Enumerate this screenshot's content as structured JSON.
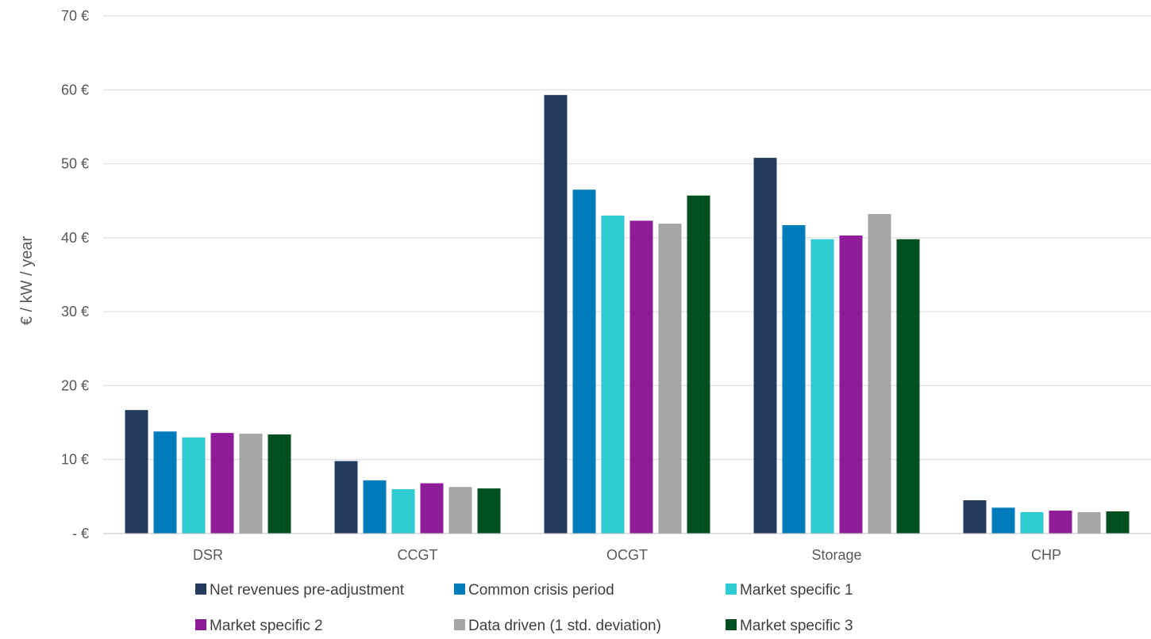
{
  "chart_data": {
    "type": "bar",
    "title": "",
    "xlabel": "",
    "ylabel": "€ / kW / year",
    "ylim": [
      0,
      70
    ],
    "yticks": [
      {
        "value": 0,
        "label": "- €"
      },
      {
        "value": 10,
        "label": "10 €"
      },
      {
        "value": 20,
        "label": "20 €"
      },
      {
        "value": 30,
        "label": "30 €"
      },
      {
        "value": 40,
        "label": "40 €"
      },
      {
        "value": 50,
        "label": "50 €"
      },
      {
        "value": 60,
        "label": "60 €"
      },
      {
        "value": 70,
        "label": "70 €"
      }
    ],
    "grid": true,
    "legend_position": "bottom",
    "categories": [
      "DSR",
      "CCGT",
      "OCGT",
      "Storage",
      "CHP"
    ],
    "series": [
      {
        "name": "Net revenues pre-adjustment",
        "color": "#243a5e",
        "values": [
          16.7,
          9.8,
          59.3,
          50.8,
          4.5
        ]
      },
      {
        "name": "Common crisis period",
        "color": "#007bbb",
        "values": [
          13.8,
          7.2,
          46.5,
          41.7,
          3.5
        ]
      },
      {
        "name": "Market specific 1",
        "color": "#2ecbd3",
        "values": [
          13.0,
          6.0,
          43.0,
          39.8,
          2.9
        ]
      },
      {
        "name": "Market specific 2",
        "color": "#8e1c99",
        "values": [
          13.6,
          6.8,
          42.3,
          40.3,
          3.1
        ]
      },
      {
        "name": "Data driven (1 std. deviation)",
        "color": "#a6a6a6",
        "values": [
          13.5,
          6.3,
          41.9,
          43.2,
          2.9
        ]
      },
      {
        "name": "Market specific 3",
        "color": "#00501f",
        "values": [
          13.4,
          6.1,
          45.7,
          39.8,
          3.0
        ]
      }
    ]
  }
}
